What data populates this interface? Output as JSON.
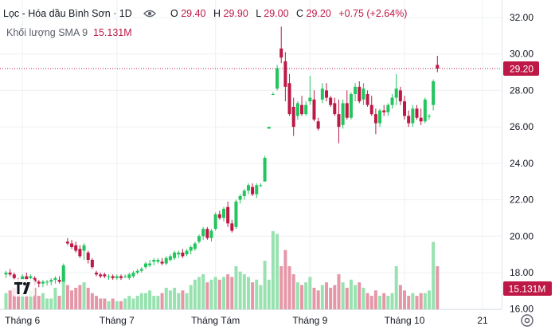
{
  "header": {
    "symbol_title": "Lọc - Hóa dầu Bình Sơn · 1D",
    "o_label": "O",
    "o_value": "29.40",
    "h_label": "H",
    "h_value": "29.90",
    "l_label": "L",
    "l_value": "29.00",
    "c_label": "C",
    "c_value": "29.20",
    "change": "+0.75 (+2.64%)",
    "volume_label": "Khối lượng SMA 9",
    "volume_value": "15.131M"
  },
  "price_badge": "29.20",
  "volume_badge": "15.131M",
  "watermark": "TV",
  "colors": {
    "up": "#22c55e",
    "down": "#be1846",
    "up_vol": "#98e2b0",
    "down_vol": "#e597a8",
    "grid": "#eef0f3",
    "text": "#131722",
    "muted": "#5b5f6b"
  },
  "icons": [
    "eye-icon",
    "settings-icon"
  ],
  "chart_data": {
    "type": "candlestick",
    "title": "",
    "y_ticks": [
      "32.00",
      "30.00",
      "28.00",
      "26.00",
      "24.00",
      "22.00",
      "20.00",
      "18.00",
      "16.00"
    ],
    "ylim": [
      15.9,
      32.7
    ],
    "x_ticks": [
      "Tháng 6",
      "Tháng 7",
      "Tháng Tám",
      "Tháng 9",
      "Tháng 10",
      "21"
    ],
    "x_tick_index": [
      4,
      27,
      51,
      74,
      97,
      116
    ],
    "last_price": 29.2,
    "candles": [
      [
        17.9,
        18.1,
        17.7,
        18.0,
        6
      ],
      [
        18.0,
        18.2,
        17.8,
        17.9,
        7
      ],
      [
        17.9,
        18.0,
        17.6,
        17.7,
        8
      ],
      [
        17.5,
        17.7,
        17.1,
        17.4,
        9
      ],
      [
        17.6,
        17.9,
        17.4,
        17.8,
        6
      ],
      [
        17.8,
        18.0,
        17.5,
        17.6,
        5
      ],
      [
        17.7,
        17.9,
        17.5,
        17.8,
        7
      ],
      [
        17.7,
        17.8,
        17.3,
        17.5,
        8
      ],
      [
        17.5,
        17.6,
        17.2,
        17.4,
        5
      ],
      [
        17.4,
        17.6,
        17.2,
        17.5,
        6
      ],
      [
        17.5,
        17.6,
        17.3,
        17.5,
        4
      ],
      [
        17.5,
        17.7,
        17.3,
        17.6,
        4
      ],
      [
        17.6,
        17.8,
        17.4,
        17.7,
        8
      ],
      [
        17.6,
        17.8,
        17.4,
        17.5,
        5
      ],
      [
        17.5,
        18.5,
        17.5,
        18.4,
        14
      ],
      [
        19.7,
        19.9,
        19.5,
        19.6,
        9
      ],
      [
        19.6,
        19.8,
        19.3,
        19.4,
        7
      ],
      [
        19.5,
        19.7,
        19.1,
        19.2,
        8
      ],
      [
        19.3,
        19.5,
        18.8,
        18.9,
        9
      ],
      [
        19.2,
        19.6,
        18.7,
        19.5,
        10
      ],
      [
        19.1,
        19.2,
        18.5,
        18.7,
        8
      ],
      [
        18.7,
        18.8,
        18.2,
        18.3,
        6
      ],
      [
        18.0,
        18.1,
        17.8,
        17.9,
        5
      ],
      [
        17.9,
        18.0,
        17.7,
        17.8,
        4
      ],
      [
        17.9,
        18.0,
        17.7,
        17.8,
        4
      ],
      [
        17.8,
        17.9,
        17.6,
        17.8,
        3
      ],
      [
        17.8,
        17.9,
        17.6,
        17.7,
        4
      ],
      [
        17.7,
        17.9,
        17.6,
        17.8,
        3
      ],
      [
        17.8,
        17.9,
        17.6,
        17.7,
        3
      ],
      [
        17.8,
        17.9,
        17.7,
        17.8,
        4
      ],
      [
        17.7,
        18.0,
        17.6,
        17.9,
        5
      ],
      [
        17.8,
        18.1,
        17.7,
        18.0,
        4
      ],
      [
        18.0,
        18.2,
        17.9,
        18.1,
        5
      ],
      [
        18.1,
        18.3,
        18.0,
        18.2,
        6
      ],
      [
        18.3,
        18.6,
        18.2,
        18.5,
        6
      ],
      [
        18.4,
        18.7,
        18.3,
        18.5,
        7
      ],
      [
        18.6,
        18.8,
        18.4,
        18.7,
        5
      ],
      [
        18.6,
        18.8,
        18.5,
        18.7,
        5
      ],
      [
        18.6,
        18.8,
        18.4,
        18.5,
        6
      ],
      [
        18.5,
        18.9,
        18.4,
        18.8,
        8
      ],
      [
        18.7,
        19.0,
        18.6,
        18.9,
        7
      ],
      [
        18.8,
        19.2,
        18.7,
        19.1,
        8
      ],
      [
        19.0,
        19.2,
        18.8,
        19.1,
        6
      ],
      [
        19.1,
        19.3,
        18.8,
        18.9,
        7
      ],
      [
        19.0,
        19.3,
        18.9,
        19.2,
        6
      ],
      [
        19.2,
        19.5,
        19.0,
        19.4,
        9
      ],
      [
        19.3,
        19.7,
        19.2,
        19.6,
        11
      ],
      [
        19.7,
        20.1,
        19.6,
        20.0,
        12
      ],
      [
        20.0,
        20.5,
        19.8,
        20.4,
        13
      ],
      [
        20.4,
        20.5,
        19.8,
        19.9,
        10
      ],
      [
        19.9,
        20.4,
        19.7,
        20.3,
        11
      ],
      [
        20.4,
        21.3,
        20.3,
        21.2,
        12
      ],
      [
        21.2,
        21.4,
        20.9,
        21.0,
        11
      ],
      [
        21.0,
        21.6,
        20.8,
        21.5,
        12
      ],
      [
        21.6,
        21.9,
        20.5,
        20.7,
        13
      ],
      [
        20.7,
        20.9,
        20.2,
        20.3,
        12
      ],
      [
        20.5,
        22.0,
        20.4,
        21.9,
        16
      ],
      [
        22.0,
        22.3,
        21.8,
        22.2,
        14
      ],
      [
        22.2,
        22.6,
        22.0,
        22.5,
        13
      ],
      [
        22.5,
        22.9,
        22.3,
        22.8,
        12
      ],
      [
        22.7,
        22.9,
        22.2,
        22.3,
        10
      ],
      [
        22.3,
        22.9,
        22.1,
        22.8,
        11
      ],
      [
        22.8,
        22.9,
        22.7,
        22.8,
        9
      ],
      [
        23.0,
        24.4,
        23.0,
        24.3,
        18
      ],
      [
        25.9,
        26.0,
        25.9,
        26.0,
        11
      ],
      [
        27.8,
        27.9,
        27.8,
        27.8,
        29
      ],
      [
        28.1,
        29.4,
        28.0,
        29.2,
        28
      ],
      [
        30.3,
        31.5,
        29.5,
        29.8,
        16
      ],
      [
        29.6,
        30.1,
        27.4,
        28.2,
        22
      ],
      [
        28.4,
        28.9,
        26.6,
        26.7,
        16
      ],
      [
        27.1,
        27.6,
        25.5,
        26.0,
        13
      ],
      [
        26.6,
        27.4,
        26.4,
        27.3,
        10
      ],
      [
        27.2,
        27.7,
        26.6,
        26.7,
        9
      ],
      [
        26.7,
        27.4,
        26.6,
        27.2,
        10
      ],
      [
        27.4,
        28.8,
        27.2,
        27.6,
        12
      ],
      [
        27.5,
        28.0,
        26.3,
        26.4,
        8
      ],
      [
        26.3,
        26.5,
        25.8,
        25.9,
        7
      ],
      [
        27.5,
        28.4,
        27.3,
        28.1,
        9
      ],
      [
        28.0,
        28.4,
        27.4,
        27.6,
        10
      ],
      [
        27.6,
        27.7,
        27.1,
        27.2,
        8
      ],
      [
        27.3,
        27.6,
        26.6,
        26.7,
        9
      ],
      [
        26.7,
        27.5,
        25.1,
        26.0,
        13
      ],
      [
        26.1,
        27.5,
        25.9,
        27.3,
        10
      ],
      [
        27.3,
        28.0,
        26.4,
        26.5,
        8
      ],
      [
        26.5,
        27.9,
        26.4,
        27.8,
        11
      ],
      [
        27.8,
        28.4,
        27.4,
        28.2,
        9
      ],
      [
        28.2,
        28.5,
        27.3,
        27.4,
        10
      ],
      [
        27.5,
        28.4,
        27.2,
        28.1,
        8
      ],
      [
        27.8,
        28.0,
        27.1,
        27.2,
        6
      ],
      [
        27.2,
        27.7,
        26.6,
        26.7,
        5
      ],
      [
        26.7,
        27.0,
        25.6,
        26.2,
        7
      ],
      [
        26.2,
        27.0,
        26.0,
        26.9,
        5
      ],
      [
        26.9,
        27.2,
        26.6,
        26.8,
        6
      ],
      [
        26.8,
        27.3,
        26.6,
        27.2,
        5
      ],
      [
        27.2,
        27.8,
        27.0,
        27.6,
        6
      ],
      [
        27.6,
        28.9,
        27.2,
        28.1,
        16
      ],
      [
        28.0,
        28.2,
        27.2,
        27.4,
        9
      ],
      [
        27.4,
        27.7,
        26.4,
        26.6,
        7
      ],
      [
        26.6,
        26.9,
        26.0,
        26.2,
        5
      ],
      [
        26.2,
        27.2,
        26.0,
        27.0,
        6
      ],
      [
        27.0,
        27.2,
        26.4,
        26.5,
        5
      ],
      [
        26.5,
        27.0,
        26.1,
        26.3,
        6
      ],
      [
        26.3,
        27.6,
        26.2,
        27.5,
        6
      ],
      [
        26.6,
        26.7,
        26.4,
        26.6,
        7
      ],
      [
        27.2,
        28.6,
        26.9,
        28.5,
        25
      ],
      [
        29.4,
        29.9,
        29.0,
        29.2,
        16
      ]
    ]
  }
}
